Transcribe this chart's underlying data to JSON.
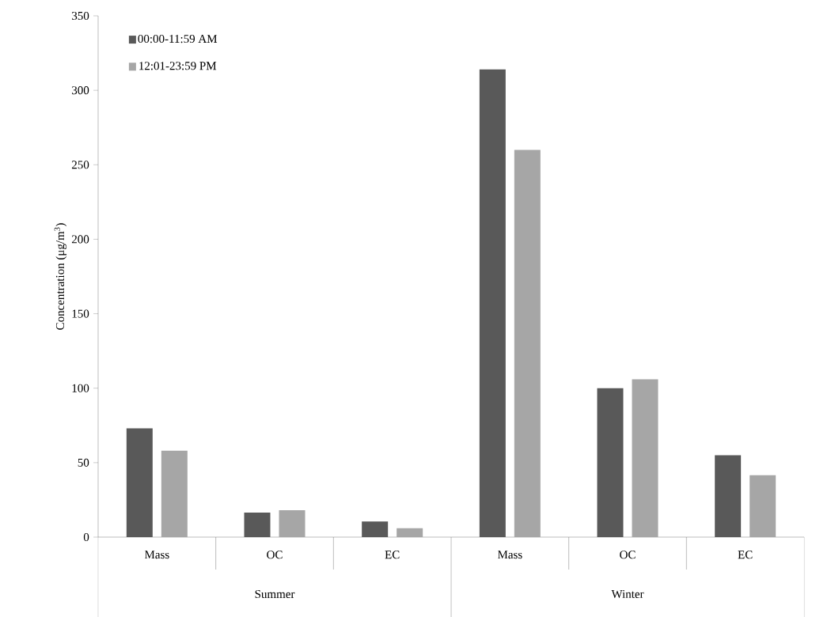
{
  "chart_data": {
    "type": "bar",
    "ylabel": "Concentration (μg/m$^{3}$)",
    "categories": [
      "Mass",
      "OC",
      "EC",
      "Mass",
      "OC",
      "EC"
    ],
    "series": [
      {
        "name": "00:00-11:59 AM",
        "color": "#595959",
        "values": [
          73,
          16.5,
          10.5,
          314,
          100,
          55
        ]
      },
      {
        "name": "12:01-23:59 PM",
        "color": "#a6a6a6",
        "values": [
          58,
          18,
          6,
          260,
          106,
          41.5
        ]
      }
    ],
    "ylim": [
      0,
      350
    ],
    "yticks": [
      0,
      50,
      100,
      150,
      200,
      250,
      300,
      350
    ],
    "annotations": [
      "Summer",
      "Winter"
    ],
    "grid": false,
    "legend": "top left"
  }
}
